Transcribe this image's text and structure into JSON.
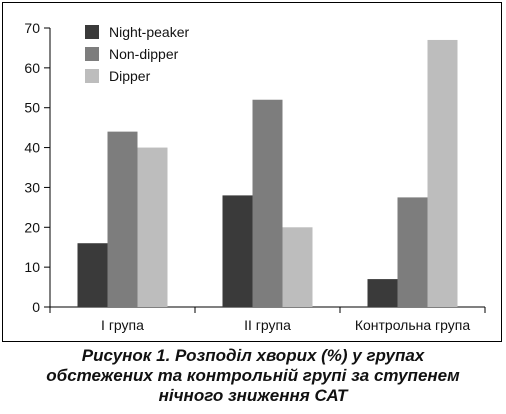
{
  "chart_data": {
    "type": "bar",
    "categories": [
      "I група",
      "II група",
      "Контрольна група"
    ],
    "series": [
      {
        "name": "Night-peaker",
        "color": "#3a3a3a",
        "values": [
          16,
          28,
          7
        ]
      },
      {
        "name": "Non-dipper",
        "color": "#7d7d7d",
        "values": [
          44,
          52,
          27.5
        ]
      },
      {
        "name": "Dipper",
        "color": "#bdbdbd",
        "values": [
          40,
          20,
          67
        ]
      }
    ],
    "ylim": [
      0,
      70
    ],
    "yticks": [
      0,
      10,
      20,
      30,
      40,
      50,
      60,
      70
    ],
    "grid": false,
    "legend_position": "top-left",
    "title": "",
    "xlabel": "",
    "ylabel": ""
  },
  "caption": {
    "line1": "Рисунок 1.  Розподіл хворих (%) у групах",
    "line2": "обстежених та контрольній групі за ступенем",
    "line3": "нічного зниження САТ"
  }
}
